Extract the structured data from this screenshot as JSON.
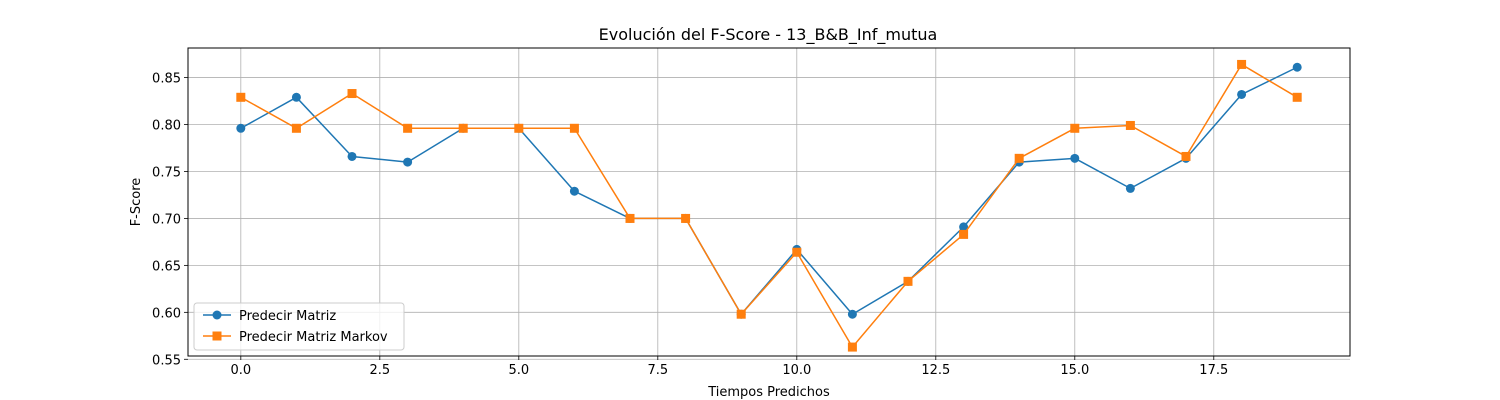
{
  "chart_data": {
    "type": "line",
    "title": "Evolución del F-Score - 13_B&B_Inf_mutua",
    "xlabel": "Tiempos Predichos",
    "ylabel": "F-Score",
    "xlim": [
      -0.95,
      19.95
    ],
    "ylim": [
      0.5535,
      0.8815
    ],
    "x_ticks": [
      0.0,
      2.5,
      5.0,
      7.5,
      10.0,
      12.5,
      15.0,
      17.5
    ],
    "x_tick_labels": [
      "0.0",
      "2.5",
      "5.0",
      "7.5",
      "10.0",
      "12.5",
      "15.0",
      "17.5"
    ],
    "y_ticks": [
      0.55,
      0.6,
      0.65,
      0.7,
      0.75,
      0.8,
      0.85
    ],
    "y_tick_labels": [
      "0.55",
      "0.60",
      "0.65",
      "0.70",
      "0.75",
      "0.80",
      "0.85"
    ],
    "grid": true,
    "legend_position": "lower-left",
    "x": [
      0,
      1,
      2,
      3,
      4,
      5,
      6,
      7,
      8,
      9,
      10,
      11,
      12,
      13,
      14,
      15,
      16,
      17,
      18,
      19
    ],
    "series": [
      {
        "name": "Predecir Matriz",
        "color": "#1f77b4",
        "marker": "circle",
        "values": [
          0.796,
          0.829,
          0.766,
          0.76,
          0.796,
          0.796,
          0.729,
          0.7,
          0.7,
          0.598,
          0.667,
          0.598,
          0.633,
          0.691,
          0.76,
          0.764,
          0.732,
          0.764,
          0.832,
          0.861
        ]
      },
      {
        "name": "Predecir Matriz Markov",
        "color": "#ff7f0e",
        "marker": "square",
        "values": [
          0.829,
          0.796,
          0.833,
          0.796,
          0.796,
          0.796,
          0.796,
          0.7,
          0.7,
          0.598,
          0.664,
          0.563,
          0.633,
          0.683,
          0.764,
          0.796,
          0.799,
          0.766,
          0.864,
          0.829
        ]
      }
    ]
  }
}
